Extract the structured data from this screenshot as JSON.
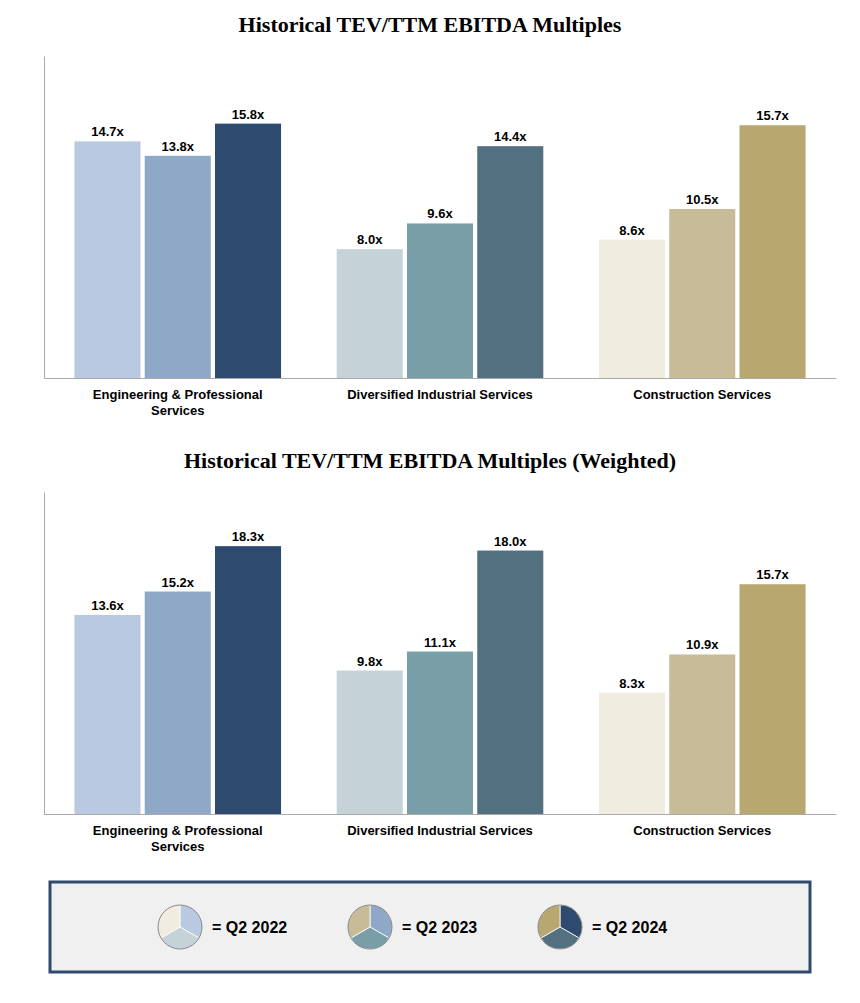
{
  "chart_data": [
    {
      "type": "bar",
      "title": "Historical TEV/TTM EBITDA Multiples",
      "categories": [
        "Engineering & Professional\nServices",
        "Diversified Industrial Services",
        "Construction Services"
      ],
      "series": [
        {
          "values": [
            14.7,
            8.0,
            8.6
          ],
          "value_labels": [
            "14.7x",
            "8.0x",
            "8.6x"
          ],
          "colors": [
            "#b8c9e1",
            "#c5d3d8",
            "#f0ece0"
          ]
        },
        {
          "values": [
            13.8,
            9.6,
            10.5
          ],
          "value_labels": [
            "13.8x",
            "9.6x",
            "10.5x"
          ],
          "colors": [
            "#8fa8c8",
            "#7a9ea8",
            "#c8bc98"
          ]
        },
        {
          "values": [
            15.8,
            14.4,
            15.7
          ],
          "value_labels": [
            "15.8x",
            "14.4x",
            "15.7x"
          ],
          "colors": [
            "#2e4a6e",
            "#527080",
            "#b8a870"
          ]
        }
      ],
      "ylim": [
        0,
        20.0
      ],
      "grid": false,
      "data_labels": true,
      "tick_labels": "x"
    },
    {
      "type": "bar",
      "title": "Historical TEV/TTM EBITDA Multiples (Weighted)",
      "categories": [
        "Engineering & Professional\nServices",
        "Diversified Industrial Services",
        "Construction Services"
      ],
      "series": [
        {
          "name": "= Q2 2022",
          "values": [
            13.6,
            9.8,
            8.3
          ],
          "value_labels": [
            "13.6x",
            "9.8x",
            "8.3x"
          ],
          "colors": [
            "#b8c9e1",
            "#c5d3d8",
            "#f0ece0"
          ]
        },
        {
          "name": "= Q2 2023",
          "values": [
            15.2,
            11.1,
            10.9
          ],
          "value_labels": [
            "15.2x",
            "11.1x",
            "10.9x"
          ],
          "colors": [
            "#8fa8c8",
            "#7a9ea8",
            "#c8bc98"
          ]
        },
        {
          "name": "= Q2 2024",
          "values": [
            18.3,
            18.0,
            15.7
          ],
          "value_labels": [
            "18.3x",
            "18.0x",
            "15.7x"
          ],
          "colors": [
            "#2e4a6e",
            "#527080",
            "#b8a870"
          ]
        }
      ],
      "ylim": [
        0,
        22.0
      ],
      "grid": false,
      "data_labels": true,
      "tick_labels": "x",
      "legend": "bottom"
    }
  ]
}
